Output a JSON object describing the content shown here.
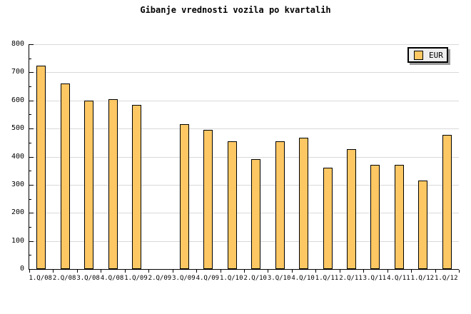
{
  "title": "Gibanje vrednosti vozila po kvartalih",
  "legend": {
    "label": "EUR"
  },
  "colors": {
    "background": "#FFFFFF",
    "bar_fill": "#FDC864",
    "bar_border": "#000000",
    "grid": "#D9D9D9",
    "axis": "#000000",
    "legend_bg": "#EEEEEE",
    "legend_shadow": "#9C9C9C",
    "text": "#000000"
  },
  "y_axis": {
    "tick_labels": [
      "0",
      "100",
      "200",
      "300",
      "400",
      "500",
      "600",
      "700",
      "800"
    ]
  },
  "chart_data": {
    "type": "bar",
    "title": "Gibanje vrednosti vozila po kvartalih",
    "categories": [
      "1.Q/08",
      "2.Q/08",
      "3.Q/08",
      "4.Q/08",
      "1.Q/09",
      "2.Q/09",
      "3.Q/09",
      "4.Q/09",
      "1.Q/10",
      "2.Q/10",
      "3.Q/10",
      "4.Q/10",
      "1.Q/11",
      "2.Q/11",
      "3.Q/11",
      "4.Q/11",
      "1.Q/12",
      "1.Q/12"
    ],
    "series": [
      {
        "name": "EUR",
        "values": [
          725,
          660,
          600,
          605,
          585,
          null,
          515,
          495,
          455,
          390,
          455,
          468,
          360,
          427,
          370,
          370,
          315,
          478
        ]
      }
    ],
    "xlabel": "",
    "ylabel": "",
    "ylim": [
      0,
      800
    ],
    "ytick_step": 100,
    "yminor_step": 50,
    "grid": true,
    "legend_position": "top-right",
    "missing_categories": [
      "2.Q/09"
    ]
  }
}
